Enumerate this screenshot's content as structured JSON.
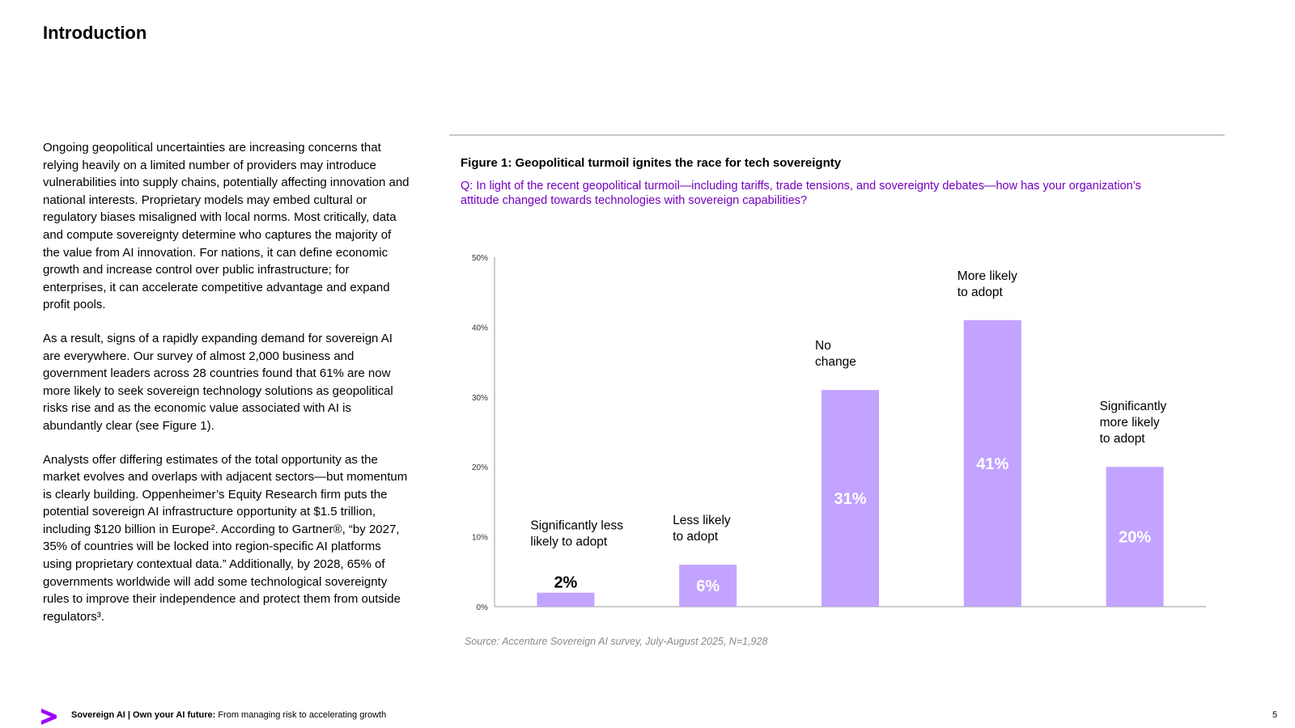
{
  "page": {
    "title": "Introduction",
    "paragraphs": [
      "Ongoing geopolitical uncertainties are increasing concerns that relying heavily on a limited number of providers may introduce vulnerabilities into supply chains, potentially affecting innovation and national interests. Proprietary models may embed cultural or regulatory biases misaligned with local norms. Most critically, data and compute sovereignty determine who captures the majority of the value from AI innovation. For nations, it can define economic growth and increase control over public infrastructure; for enterprises, it can accelerate competitive advantage and expand profit pools.",
      "As a result, signs of a rapidly expanding demand for sovereign AI are everywhere. Our survey of almost 2,000 business and government leaders across 28 countries found that 61% are now more likely to seek sovereign technology solutions as geopolitical risks rise and as the economic value associated with AI is abundantly clear (see Figure 1).",
      "Analysts offer differing estimates of the total opportunity as the market evolves and overlaps with adjacent sectors—but momentum is clearly building. Oppenheimer’s Equity Research firm puts the potential sovereign AI infrastructure opportunity at $1.5 trillion, including $120 billion in Europe². According to Gartner®, “by 2027, 35% of countries will be locked into region-specific AI platforms using proprietary contextual data.” Additionally, by 2028, 65% of governments worldwide will add some technological sovereignty rules to improve their independence and protect them from outside regulators³."
    ]
  },
  "figure": {
    "title": "Figure 1: Geopolitical turmoil ignites the race for tech sovereignty",
    "question": "Q: In light of the recent geopolitical turmoil—including tariffs, trade tensions, and sovereignty debates—how has your organization’s attitude changed towards technologies with sovereign capabilities?",
    "source": "Source: Accenture Sovereign AI survey, July-August 2025, N=1,928"
  },
  "chart_data": {
    "type": "bar",
    "categories": [
      "Significantly less likely to adopt",
      "Less likely to adopt",
      "No change",
      "More likely to adopt",
      "Significantly more likely to adopt"
    ],
    "category_lines": [
      [
        "Significantly less",
        "likely to adopt"
      ],
      [
        "Less likely",
        "to adopt"
      ],
      [
        "No",
        "change"
      ],
      [
        "More likely",
        "to adopt"
      ],
      [
        "Significantly",
        "more likely",
        "to adopt"
      ]
    ],
    "values": [
      2,
      6,
      31,
      41,
      20
    ],
    "value_labels": [
      "2%",
      "6%",
      "31%",
      "41%",
      "20%"
    ],
    "y_ticks": [
      "0%",
      "10%",
      "20%",
      "30%",
      "40%",
      "50%"
    ],
    "ylim": [
      0,
      50
    ],
    "title": "",
    "xlabel": "",
    "ylabel": "",
    "bar_color": "#c2a3ff",
    "grid": false,
    "legend": "none"
  },
  "footer": {
    "brand_bold": "Sovereign AI | Own your AI future:",
    "brand_rest": " From managing risk to accelerating growth",
    "page_number": "5",
    "logo_icon": "accenture-chevron-icon",
    "logo_color": "#a100ff"
  }
}
